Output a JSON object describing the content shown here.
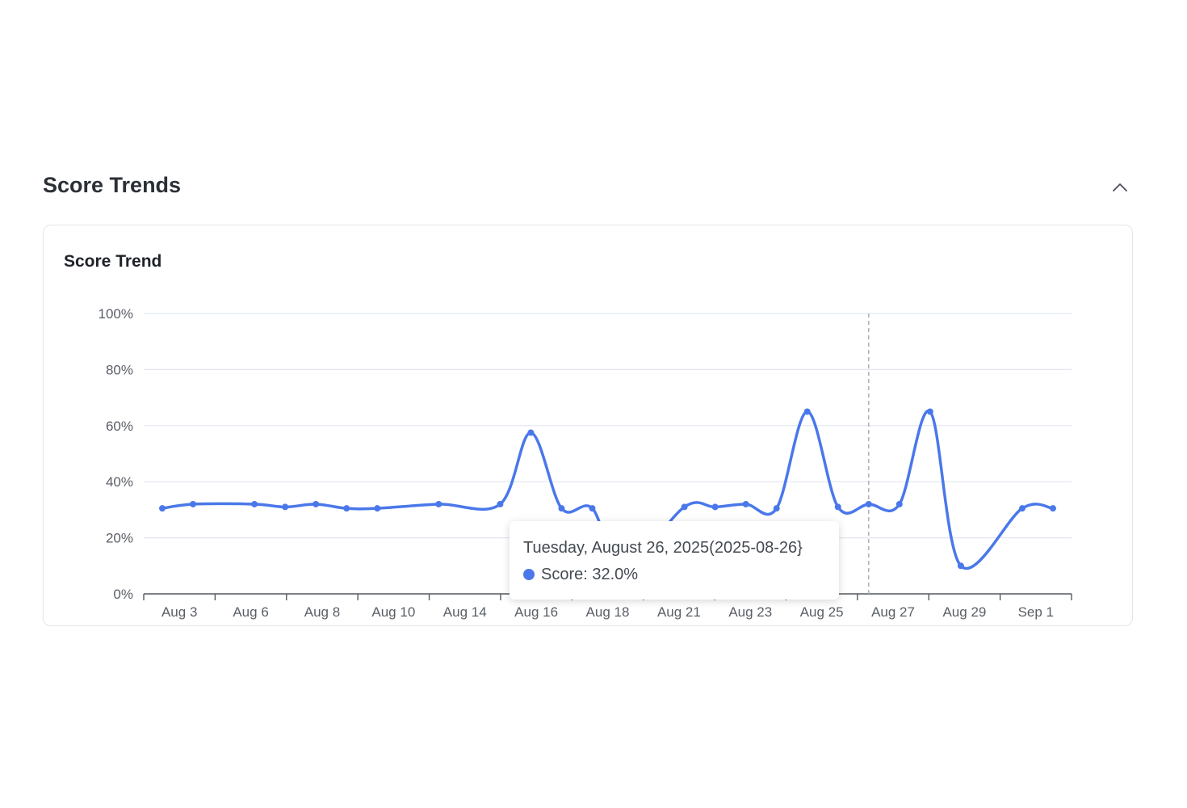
{
  "section": {
    "title": "Score Trends",
    "collapse_icon": "chevron-up-icon"
  },
  "card": {
    "title": "Score Trend"
  },
  "colors": {
    "series": "#4a78ea",
    "grid": "#e4e6f0",
    "axis": "#555a61",
    "tick_text": "#5a5f66",
    "crosshair": "#a9adb3"
  },
  "tooltip": {
    "date": "Tuesday, August 26, 2025(2025-08-26}",
    "series_name": "Score",
    "value_text": "32.0%"
  },
  "chart_data": {
    "type": "line",
    "title": "Score Trend",
    "xlabel": "",
    "ylabel": "",
    "ylim": [
      0,
      100
    ],
    "y_ticks": [
      "0%",
      "20%",
      "40%",
      "60%",
      "80%",
      "100%"
    ],
    "x_tick_labels": [
      "Aug 3",
      "Aug 6",
      "Aug 8",
      "Aug 10",
      "Aug 14",
      "Aug 16",
      "Aug 18",
      "Aug 21",
      "Aug 23",
      "Aug 25",
      "Aug 27",
      "Aug 29",
      "Sep 1"
    ],
    "grid": true,
    "smooth": true,
    "x": [
      "Aug 3",
      "Aug 4",
      "Aug 6",
      "Aug 7",
      "Aug 8",
      "Aug 9",
      "Aug 10",
      "Aug 12",
      "Aug 14",
      "Aug 15",
      "Aug 16",
      "Aug 17",
      "Aug 18",
      "Aug 20",
      "Aug 21",
      "Aug 22",
      "Aug 23",
      "Aug 24",
      "Aug 25",
      "Aug 26",
      "Aug 27",
      "Aug 28",
      "Aug 29",
      "Aug 31",
      "Sep 1"
    ],
    "series": [
      {
        "name": "Score",
        "values": [
          30.5,
          32,
          32,
          31,
          32,
          30.5,
          30.5,
          32,
          32,
          57.5,
          30.5,
          30.5,
          9,
          31,
          31,
          32,
          30.5,
          65,
          31,
          32,
          32,
          65,
          10,
          30.5,
          30.5
        ]
      }
    ],
    "highlight": {
      "x": "Aug 26",
      "value": 32.0
    }
  }
}
